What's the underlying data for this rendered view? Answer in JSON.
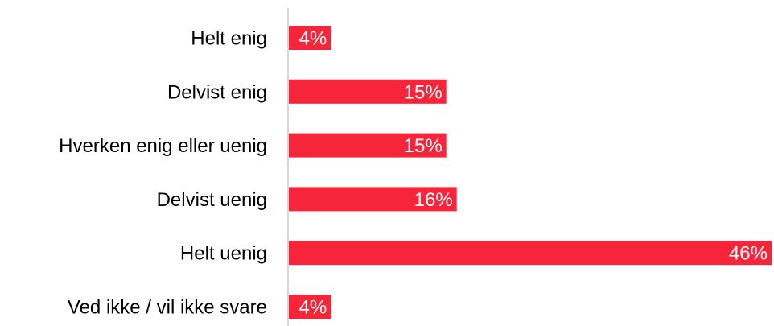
{
  "chart_data": {
    "type": "bar",
    "orientation": "horizontal",
    "categories": [
      "Helt enig",
      "Delvist enig",
      "Hverken enig eller uenig",
      "Delvist uenig",
      "Helt uenig",
      "Ved ikke / vil ikke svare"
    ],
    "values": [
      4,
      15,
      15,
      16,
      46,
      4
    ],
    "value_labels": [
      "4%",
      "15%",
      "15%",
      "16%",
      "46%",
      "4%"
    ],
    "unit": "%",
    "xlim": [
      0,
      46
    ],
    "grid": false,
    "legend": "none",
    "bar_color": "#f7253a",
    "axis_color": "#c8c8c8",
    "label_color": "#ffffff",
    "text_color": "#000000"
  }
}
